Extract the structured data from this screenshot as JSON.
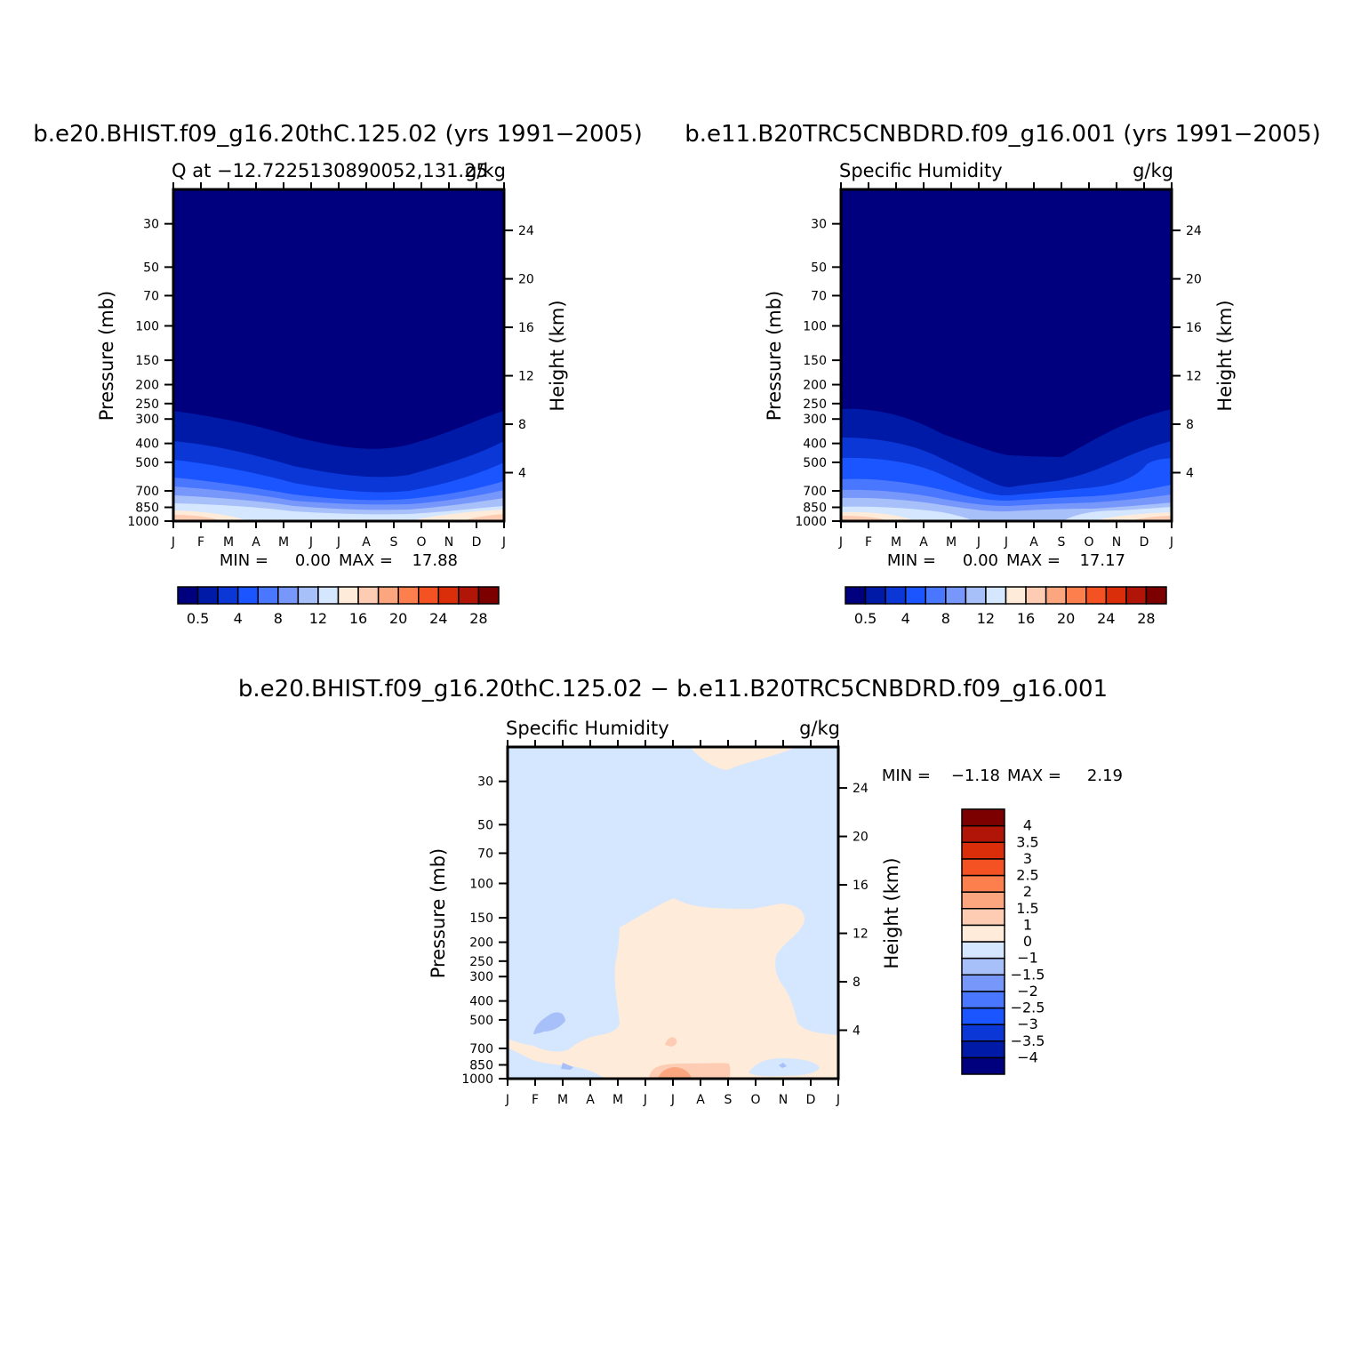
{
  "colors": {
    "background": "#ffffff",
    "frame": "#000000",
    "abs_palette": [
      "#00007f",
      "#001aa8",
      "#0a37d6",
      "#1a55ff",
      "#4a77ff",
      "#7797fb",
      "#a8c0fa",
      "#d5e7fe",
      "#ffebd9",
      "#fdccb3",
      "#fca67f",
      "#fc7f4d",
      "#f55224",
      "#da2d0a",
      "#b01507",
      "#7d0000"
    ],
    "diff_palette": [
      "#00007f",
      "#001aa8",
      "#0a37d6",
      "#1a55ff",
      "#4a77ff",
      "#7797fb",
      "#a8c0fa",
      "#d5e7fe",
      "#ffebd9",
      "#fdccb3",
      "#fca67f",
      "#fc7f4d",
      "#f55224",
      "#da2d0a",
      "#b01507",
      "#7d0000"
    ]
  },
  "chart_data": [
    {
      "type": "heatmap",
      "title": "b.e20.BHIST.f09_g16.20thC.125.02 (yrs 1991−2005)",
      "left_string": "Q at −12.7225130890052,131.25",
      "right_string": "g/kg",
      "xlabel": "",
      "ylabel": "Pressure (mb)",
      "y2label": "Height (km)",
      "x_tick_labels": [
        "J",
        "F",
        "M",
        "A",
        "M",
        "J",
        "J",
        "A",
        "S",
        "O",
        "N",
        "D",
        "J"
      ],
      "y_ticks": [
        30,
        50,
        70,
        100,
        150,
        200,
        250,
        300,
        400,
        500,
        700,
        850,
        1000
      ],
      "y2_ticks": [
        4,
        8,
        12,
        16,
        20,
        24
      ],
      "ylim": [
        1000,
        20
      ],
      "yscale": "log",
      "min_text": "MIN =",
      "min_value": "0.00",
      "max_text": "MAX =",
      "max_value": "17.88",
      "colorbar": {
        "orientation": "horizontal",
        "labels": [
          "0.5",
          "4",
          "8",
          "12",
          "16",
          "20",
          "24",
          "28"
        ]
      }
    },
    {
      "type": "heatmap",
      "title": "b.e11.B20TRC5CNBDRD.f09_g16.001 (yrs 1991−2005)",
      "left_string": "Specific Humidity",
      "right_string": "g/kg",
      "xlabel": "",
      "ylabel": "Pressure (mb)",
      "y2label": "Height (km)",
      "x_tick_labels": [
        "J",
        "F",
        "M",
        "A",
        "M",
        "J",
        "J",
        "A",
        "S",
        "O",
        "N",
        "D",
        "J"
      ],
      "y_ticks": [
        30,
        50,
        70,
        100,
        150,
        200,
        250,
        300,
        400,
        500,
        700,
        850,
        1000
      ],
      "y2_ticks": [
        4,
        8,
        12,
        16,
        20,
        24
      ],
      "ylim": [
        1000,
        20
      ],
      "yscale": "log",
      "min_text": "MIN =",
      "min_value": "0.00",
      "max_text": "MAX =",
      "max_value": "17.17",
      "colorbar": {
        "orientation": "horizontal",
        "labels": [
          "0.5",
          "4",
          "8",
          "12",
          "16",
          "20",
          "24",
          "28"
        ]
      }
    },
    {
      "type": "heatmap",
      "title": "b.e20.BHIST.f09_g16.20thC.125.02 − b.e11.B20TRC5CNBDRD.f09_g16.001",
      "left_string": "Specific Humidity",
      "right_string": "g/kg",
      "xlabel": "",
      "ylabel": "Pressure (mb)",
      "y2label": "Height (km)",
      "x_tick_labels": [
        "J",
        "F",
        "M",
        "A",
        "M",
        "J",
        "J",
        "A",
        "S",
        "O",
        "N",
        "D",
        "J"
      ],
      "y_ticks": [
        30,
        50,
        70,
        100,
        150,
        200,
        250,
        300,
        400,
        500,
        700,
        850,
        1000
      ],
      "y2_ticks": [
        4,
        8,
        12,
        16,
        20,
        24
      ],
      "ylim": [
        1000,
        20
      ],
      "yscale": "log",
      "min_text": "MIN =",
      "min_value": "−1.18",
      "max_text": "MAX =",
      "max_value": "2.19",
      "colorbar": {
        "orientation": "vertical",
        "labels": [
          "4",
          "3.5",
          "3",
          "2.5",
          "2",
          "1.5",
          "1",
          "0",
          "−1",
          "−1.5",
          "−2",
          "−2.5",
          "−3",
          "−3.5",
          "−4"
        ]
      }
    }
  ]
}
